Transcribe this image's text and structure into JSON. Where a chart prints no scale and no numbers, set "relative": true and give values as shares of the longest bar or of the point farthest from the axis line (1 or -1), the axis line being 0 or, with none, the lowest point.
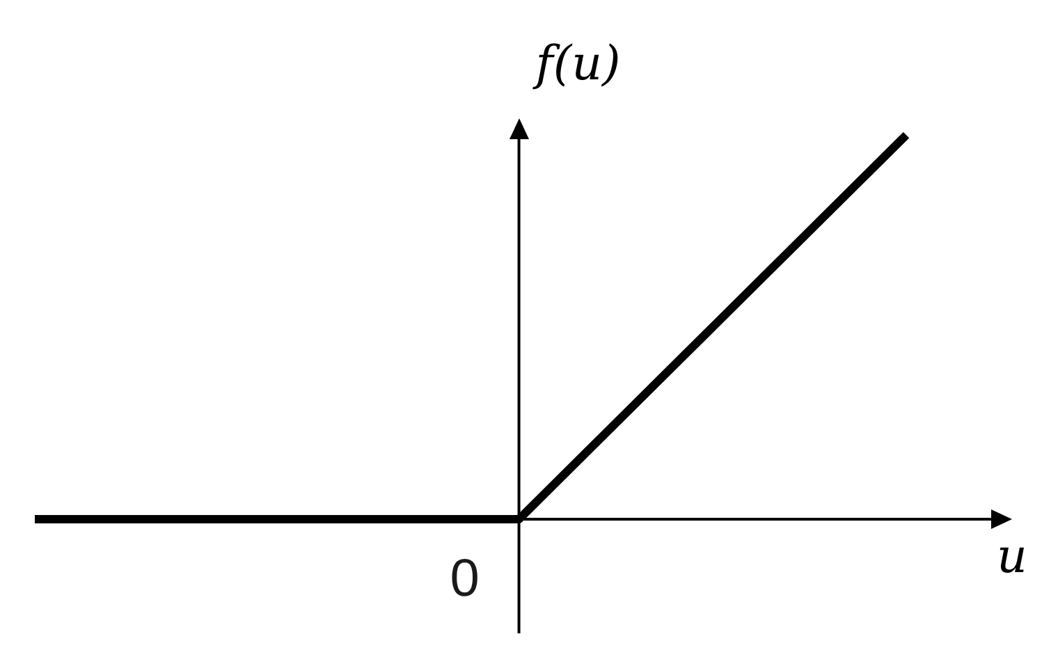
{
  "chart_data": {
    "type": "line",
    "relative": true,
    "categories": [
      null,
      null,
      null,
      null,
      null,
      null,
      null,
      null,
      null,
      null
    ],
    "values": [
      0,
      0,
      0,
      0,
      0,
      0,
      0.25,
      0.5,
      0.75,
      1
    ],
    "color": "#000000",
    "marker": "none",
    "line_style": "solid",
    "xlabel": "u",
    "ylabel": "f(u)",
    "annotations": [
      "0"
    ]
  }
}
